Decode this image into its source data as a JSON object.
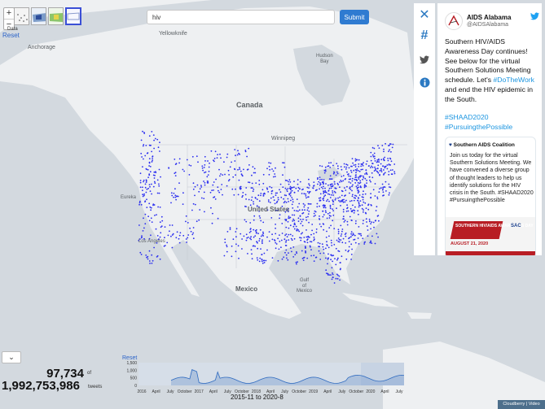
{
  "map": {
    "labels": {
      "yellowknife": "Yellowknife",
      "hudson_bay": "Hudson\nBay",
      "anchorage": "Anchorage",
      "canada": "Canada",
      "winnipeg": "Winnipeg",
      "united_states": "United States",
      "mexico": "Mexico",
      "gulf": "Gulf\nof\nMexico",
      "los_angeles": "Los Angeles",
      "eureka": "Eureka"
    },
    "colors": {
      "land": "#eef0f2",
      "water": "#d5dbe0",
      "points": "#2b2ef0"
    }
  },
  "controls": {
    "zoom_in": "+",
    "zoom_out": "−",
    "data_label": "Data",
    "reset": "Reset"
  },
  "search": {
    "value": "hiv",
    "submit_label": "Submit"
  },
  "sidebar": {
    "close_icon": "close-icon",
    "hashtag_icon": "hashtag-icon",
    "twitter_icon": "twitter-icon",
    "info_icon": "info-icon"
  },
  "tweet": {
    "name": "AIDS Alabama",
    "handle": "@AIDSAlabama",
    "text": "Southern HIV/AIDS Awareness Day continues! See below for the virtual Southern Solutions Meeting schedule. Let's",
    "hashtag_inline": "#DoTheWork",
    "text_2": " and end the HIV epidemic in the South.",
    "hashtag_1": "#SHAAD2020",
    "hashtag_2": "#PursuingthePossible",
    "card": {
      "name": "Southern AIDS Coalition",
      "text": "Join us today for the virtual Southern Solutions Meeting. We have convened a diverse group of thought leaders to help us identify solutions for the HIV crisis in the South. #SHAAD2020 #PursuingthePossible",
      "banner": "SOUTHERN HIV/AIDS AWARENESS DAY",
      "logo": "SAC",
      "date": "AUGUST 21, 2020"
    }
  },
  "stats": {
    "selected": "97,734",
    "of": "of",
    "total": "1,992,753,986",
    "unit": "tweets",
    "toggle": "⌄"
  },
  "timeline": {
    "reset": "Reset",
    "y_ticks": [
      "1,500",
      "1,000",
      "500",
      "0"
    ],
    "x_ticks": [
      "2016",
      "April",
      "July",
      "October",
      "2017",
      "April",
      "July",
      "October",
      "2018",
      "April",
      "July",
      "October",
      "2019",
      "April",
      "July",
      "October",
      "2020",
      "April",
      "July"
    ],
    "range": "2015-11 to 2020-8"
  },
  "attribution": "Cloudberry | Video"
}
